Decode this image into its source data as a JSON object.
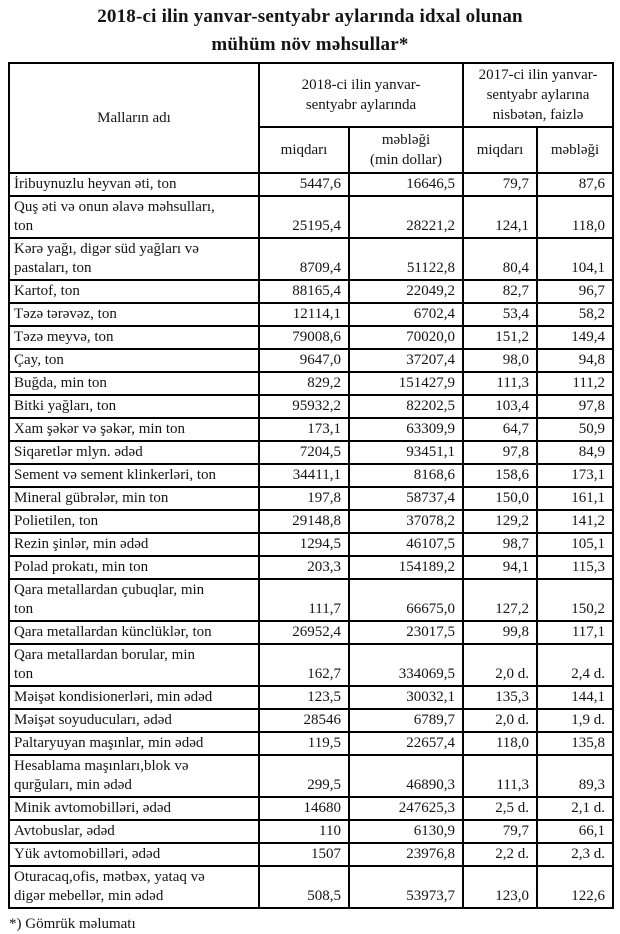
{
  "title": "2018-ci ilin yanvar-sentyabr aylarında idxal olunan\nmühüm növ məhsullar*",
  "table": {
    "header": {
      "goods": "Malların adı",
      "group_2018": "2018-ci ilin yanvar-\nsentyabr aylarında",
      "group_2017": "2017-ci ilin yanvar-\nsentyabr aylarına\nnisbətən, faizlə",
      "sub": [
        "miqdarı",
        "məbləği\n(min dollar)",
        "miqdarı",
        "məbləği"
      ]
    },
    "rows": [
      {
        "name": "İribuynuzlu heyvan əti, ton",
        "values": [
          "5447,6",
          "16646,5",
          "79,7",
          "87,6"
        ]
      },
      {
        "name": "Quş əti və onun əlavə məhsulları,\nton",
        "values": [
          "25195,4",
          "28221,2",
          "124,1",
          "118,0"
        ]
      },
      {
        "name": "Kərə yağı, digər süd yağları və\npastaları, ton",
        "values": [
          "8709,4",
          "51122,8",
          "80,4",
          "104,1"
        ]
      },
      {
        "name": "Kartof, ton",
        "values": [
          "88165,4",
          "22049,2",
          "82,7",
          "96,7"
        ]
      },
      {
        "name": "Təzə tərəvəz, ton",
        "values": [
          "12114,1",
          "6702,4",
          "53,4",
          "58,2"
        ]
      },
      {
        "name": "Təzə meyvə, ton",
        "values": [
          "79008,6",
          "70020,0",
          "151,2",
          "149,4"
        ]
      },
      {
        "name": "Çay, ton",
        "values": [
          "9647,0",
          "37207,4",
          "98,0",
          "94,8"
        ]
      },
      {
        "name": "Buğda, min ton",
        "values": [
          "829,2",
          "151427,9",
          "111,3",
          "111,2"
        ]
      },
      {
        "name": "Bitki yağları, ton",
        "values": [
          "95932,2",
          "82202,5",
          "103,4",
          "97,8"
        ]
      },
      {
        "name": "Xam şəkər və şəkər, min ton",
        "values": [
          "173,1",
          "63309,9",
          "64,7",
          "50,9"
        ]
      },
      {
        "name": "Siqaretlər mlyn. ədəd",
        "values": [
          "7204,5",
          "93451,1",
          "97,8",
          "84,9"
        ]
      },
      {
        "name": "Sement və sement klinkerləri, ton",
        "values": [
          "34411,1",
          "8168,6",
          "158,6",
          "173,1"
        ]
      },
      {
        "name": "Mineral gübrələr, min ton",
        "values": [
          "197,8",
          "58737,4",
          "150,0",
          "161,1"
        ]
      },
      {
        "name": "Polietilen, ton",
        "values": [
          "29148,8",
          "37078,2",
          "129,2",
          "141,2"
        ]
      },
      {
        "name": "Rezin şinlər, min ədəd",
        "values": [
          "1294,5",
          "46107,5",
          "98,7",
          "105,1"
        ]
      },
      {
        "name": "Polad prokatı, min ton",
        "values": [
          "203,3",
          "154189,2",
          "94,1",
          "115,3"
        ]
      },
      {
        "name": "Qara metallardan çubuqlar, min\nton",
        "values": [
          "111,7",
          "66675,0",
          "127,2",
          "150,2"
        ]
      },
      {
        "name": "Qara metallardan künclüklər, ton",
        "values": [
          "26952,4",
          "23017,5",
          "99,8",
          "117,1"
        ]
      },
      {
        "name": "Qara metallardan borular, min\nton",
        "values": [
          "162,7",
          "334069,5",
          "2,0 d.",
          "2,4 d."
        ]
      },
      {
        "name": "Məişət kondisionerləri, min ədəd",
        "values": [
          "123,5",
          "30032,1",
          "135,3",
          "144,1"
        ]
      },
      {
        "name": "Məişət soyuducuları, ədəd",
        "values": [
          "28546",
          "6789,7",
          "2,0 d.",
          "1,9 d."
        ]
      },
      {
        "name": "Paltaryuyan maşınlar, min ədəd",
        "values": [
          "119,5",
          "22657,4",
          "118,0",
          "135,8"
        ]
      },
      {
        "name": "Hesablama maşınları,blok və\nqurğuları, min ədəd",
        "values": [
          "299,5",
          "46890,3",
          "111,3",
          "89,3"
        ]
      },
      {
        "name": "Minik avtomobilləri, ədəd",
        "values": [
          "14680",
          "247625,3",
          "2,5 d.",
          "2,1 d."
        ]
      },
      {
        "name": "Avtobuslar, ədəd",
        "values": [
          "110",
          "6130,9",
          "79,7",
          "66,1"
        ]
      },
      {
        "name": "Yük avtomobilləri, ədəd",
        "values": [
          "1507",
          "23976,8",
          "2,2 d.",
          "2,3 d."
        ]
      },
      {
        "name": "Oturacaq,ofis, mətbəx, yataq və\ndigər mebellər, min ədəd",
        "values": [
          "508,5",
          "53973,7",
          "123,0",
          "122,6"
        ]
      }
    ]
  },
  "footnote": "*) Gömrük məlumatı"
}
